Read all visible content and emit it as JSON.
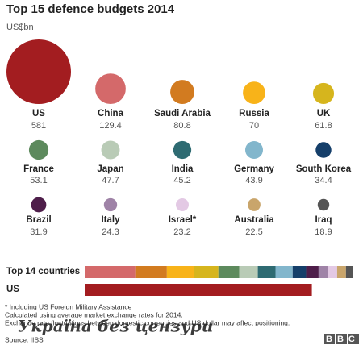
{
  "chart_data": {
    "type": "bubble",
    "title": "Top 15 defence budgets 2014",
    "subtitle": "US$bn",
    "categories": [
      "US",
      "China",
      "Saudi Arabia",
      "Russia",
      "UK",
      "France",
      "Japan",
      "India",
      "Germany",
      "South Korea",
      "Brazil",
      "Italy",
      "Israel*",
      "Australia",
      "Iraq"
    ],
    "values": [
      581,
      129.4,
      80.8,
      70,
      61.8,
      53.1,
      47.7,
      45.2,
      43.9,
      34.4,
      31.9,
      24.3,
      23.2,
      22.5,
      18.9
    ],
    "colors": [
      "#a31d20",
      "#d4696a",
      "#d27b20",
      "#f8b319",
      "#d6b51d",
      "#5d8a5d",
      "#b9cbb6",
      "#2e6b72",
      "#82b6cc",
      "#153f6a",
      "#4e1e4a",
      "#9f83a7",
      "#e3c9e4",
      "#c9a56b",
      "#555555"
    ],
    "comparison": [
      "Top 14 countries",
      "US"
    ],
    "notes": [
      "* Including US Foreign Military Assistance",
      "Calculated using average market exchange rates for 2014.",
      "Exchange rate fluctuations between domestic currencies and US dollar may affect positioning."
    ],
    "source": "Source: IISS",
    "logo": "BBC",
    "watermark": "Україна без цензури"
  }
}
